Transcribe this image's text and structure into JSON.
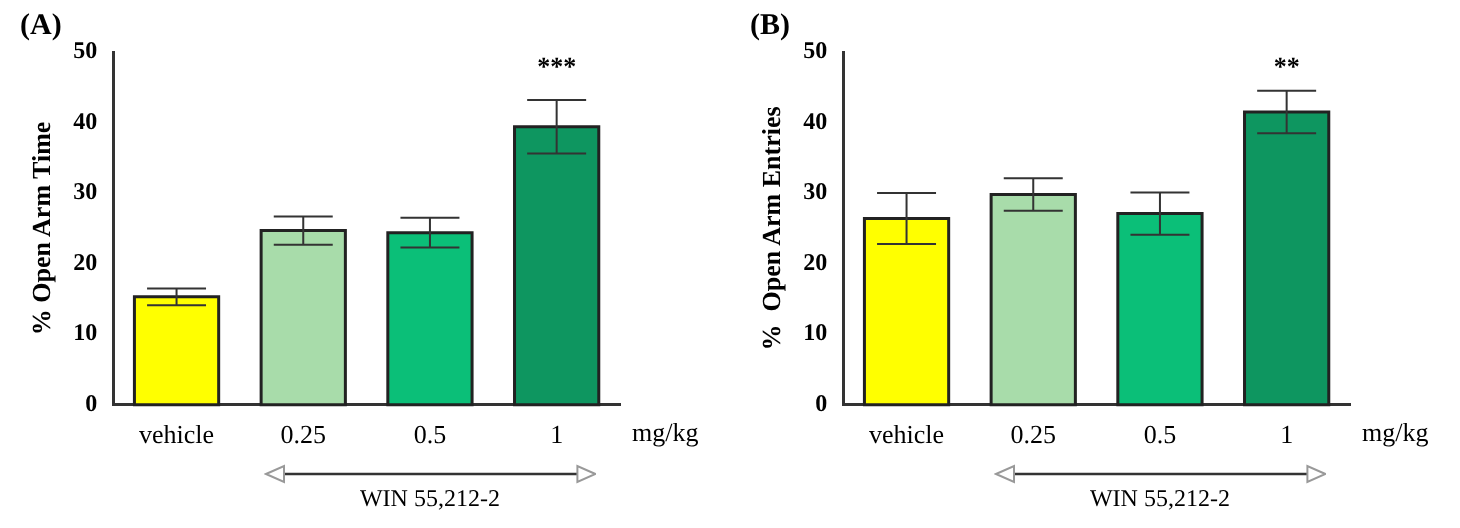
{
  "chart_data": [
    {
      "type": "bar",
      "title": "(A)",
      "ylabel": "% Open Arm Time",
      "categories": [
        "vehicle",
        "0.25",
        "0.5",
        "1"
      ],
      "values": [
        15.3,
        24.7,
        24.4,
        39.4
      ],
      "errors": [
        1.2,
        2,
        2.1,
        3.8
      ],
      "colors": [
        "#ffff00",
        "#a8dcaa",
        "#0bbf78",
        "#0e9660"
      ],
      "ylim": [
        0,
        50
      ],
      "yticks": [
        0,
        10,
        20,
        30,
        40,
        50
      ],
      "grid": false,
      "legend": false,
      "annotations": [
        "mg/kg",
        "WIN 55,212-2",
        "***"
      ]
    },
    {
      "type": "bar",
      "title": "(B)",
      "ylabel": "%  Open Arm Entries",
      "categories": [
        "vehicle",
        "0.25",
        "0.5",
        "1"
      ],
      "values": [
        26.4,
        29.8,
        27.1,
        41.5
      ],
      "errors": [
        3.6,
        2.3,
        3,
        3
      ],
      "colors": [
        "#ffff00",
        "#a8dcaa",
        "#0bbf78",
        "#0e9660"
      ],
      "ylim": [
        0,
        50
      ],
      "yticks": [
        0,
        10,
        20,
        30,
        40,
        50
      ],
      "grid": false,
      "legend": false,
      "annotations": [
        "mg/kg",
        "WIN 55,212-2",
        "**"
      ]
    }
  ]
}
